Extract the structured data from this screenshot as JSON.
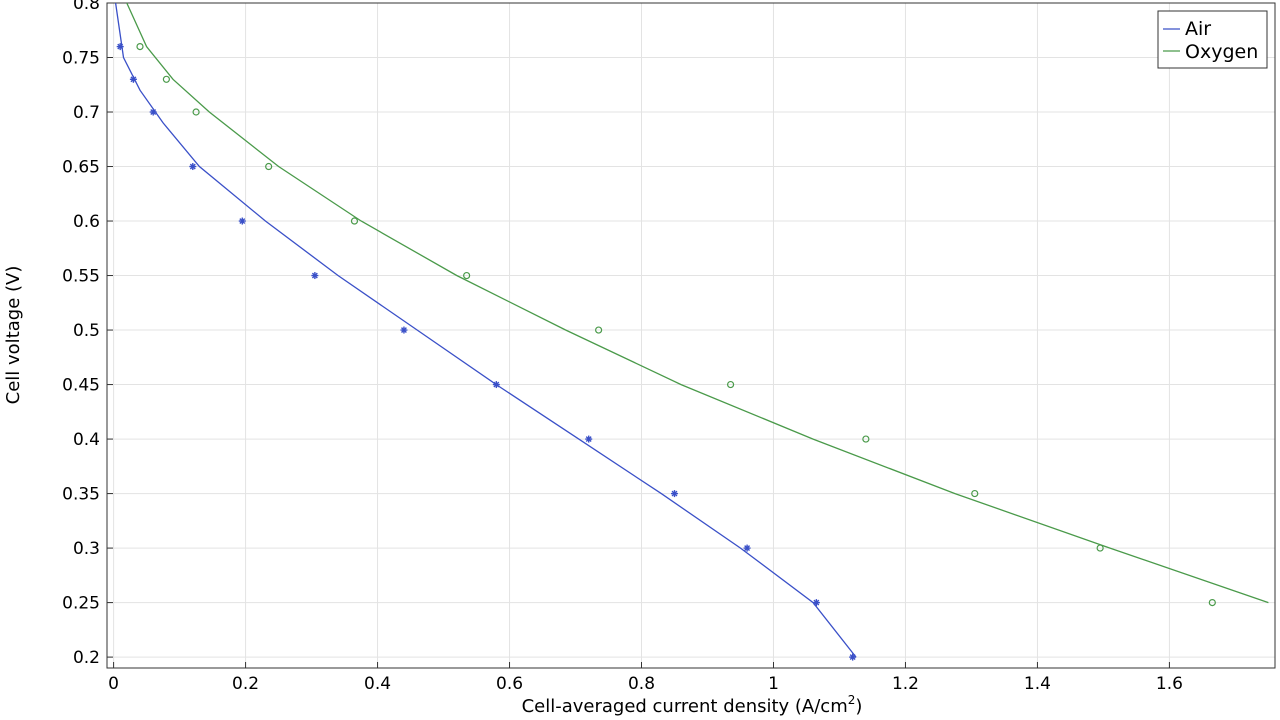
{
  "chart_data": {
    "type": "line",
    "xlabel": "Cell-averaged current density (A/cm",
    "xlabel_sup": "2",
    "xlabel_suffix": ")",
    "ylabel": "Cell voltage (V)",
    "xlim": [
      -0.01,
      1.76
    ],
    "ylim": [
      0.19,
      0.8
    ],
    "x_ticks": [
      0,
      0.2,
      0.4,
      0.6,
      0.8,
      1,
      1.2,
      1.4,
      1.6
    ],
    "x_tick_labels": [
      "0",
      "0.2",
      "0.4",
      "0.6",
      "0.8",
      "1",
      "1.2",
      "1.4",
      "1.6"
    ],
    "y_ticks": [
      0.2,
      0.25,
      0.3,
      0.35,
      0.4,
      0.45,
      0.5,
      0.55,
      0.6,
      0.65,
      0.7,
      0.75,
      0.8
    ],
    "y_tick_labels": [
      "0.2",
      "0.25",
      "0.3",
      "0.35",
      "0.4",
      "0.45",
      "0.5",
      "0.55",
      "0.6",
      "0.65",
      "0.7",
      "0.75",
      "0.8"
    ],
    "grid": true,
    "legend_position": "top-right",
    "series": [
      {
        "name": "Air",
        "color": "#3a50c8",
        "marker": "asterisk",
        "line": [
          {
            "x": 0.003,
            "y": 0.8
          },
          {
            "x": 0.015,
            "y": 0.75
          },
          {
            "x": 0.04,
            "y": 0.72
          },
          {
            "x": 0.075,
            "y": 0.69
          },
          {
            "x": 0.13,
            "y": 0.65
          },
          {
            "x": 0.23,
            "y": 0.6
          },
          {
            "x": 0.34,
            "y": 0.55
          },
          {
            "x": 0.46,
            "y": 0.5
          },
          {
            "x": 0.58,
            "y": 0.45
          },
          {
            "x": 0.705,
            "y": 0.4
          },
          {
            "x": 0.83,
            "y": 0.35
          },
          {
            "x": 0.95,
            "y": 0.3
          },
          {
            "x": 1.06,
            "y": 0.25
          },
          {
            "x": 1.125,
            "y": 0.2
          }
        ],
        "points": [
          {
            "x": 0.01,
            "y": 0.76
          },
          {
            "x": 0.03,
            "y": 0.73
          },
          {
            "x": 0.06,
            "y": 0.7
          },
          {
            "x": 0.12,
            "y": 0.65
          },
          {
            "x": 0.195,
            "y": 0.6
          },
          {
            "x": 0.305,
            "y": 0.55
          },
          {
            "x": 0.44,
            "y": 0.5
          },
          {
            "x": 0.58,
            "y": 0.45
          },
          {
            "x": 0.72,
            "y": 0.4
          },
          {
            "x": 0.85,
            "y": 0.35
          },
          {
            "x": 0.96,
            "y": 0.3
          },
          {
            "x": 1.065,
            "y": 0.25
          },
          {
            "x": 1.12,
            "y": 0.2
          }
        ]
      },
      {
        "name": "Oxygen",
        "color": "#4a9a4a",
        "marker": "circle",
        "line": [
          {
            "x": 0.02,
            "y": 0.8
          },
          {
            "x": 0.05,
            "y": 0.76
          },
          {
            "x": 0.09,
            "y": 0.73
          },
          {
            "x": 0.145,
            "y": 0.7
          },
          {
            "x": 0.25,
            "y": 0.65
          },
          {
            "x": 0.375,
            "y": 0.6
          },
          {
            "x": 0.52,
            "y": 0.55
          },
          {
            "x": 0.685,
            "y": 0.5
          },
          {
            "x": 0.86,
            "y": 0.45
          },
          {
            "x": 1.06,
            "y": 0.4
          },
          {
            "x": 1.275,
            "y": 0.35
          },
          {
            "x": 1.51,
            "y": 0.3
          },
          {
            "x": 1.75,
            "y": 0.25
          }
        ],
        "points": [
          {
            "x": 0.04,
            "y": 0.76
          },
          {
            "x": 0.08,
            "y": 0.73
          },
          {
            "x": 0.125,
            "y": 0.7
          },
          {
            "x": 0.235,
            "y": 0.65
          },
          {
            "x": 0.365,
            "y": 0.6
          },
          {
            "x": 0.535,
            "y": 0.55
          },
          {
            "x": 0.735,
            "y": 0.5
          },
          {
            "x": 0.935,
            "y": 0.45
          },
          {
            "x": 1.14,
            "y": 0.4
          },
          {
            "x": 1.305,
            "y": 0.35
          },
          {
            "x": 1.495,
            "y": 0.3
          },
          {
            "x": 1.665,
            "y": 0.25
          }
        ]
      }
    ]
  }
}
